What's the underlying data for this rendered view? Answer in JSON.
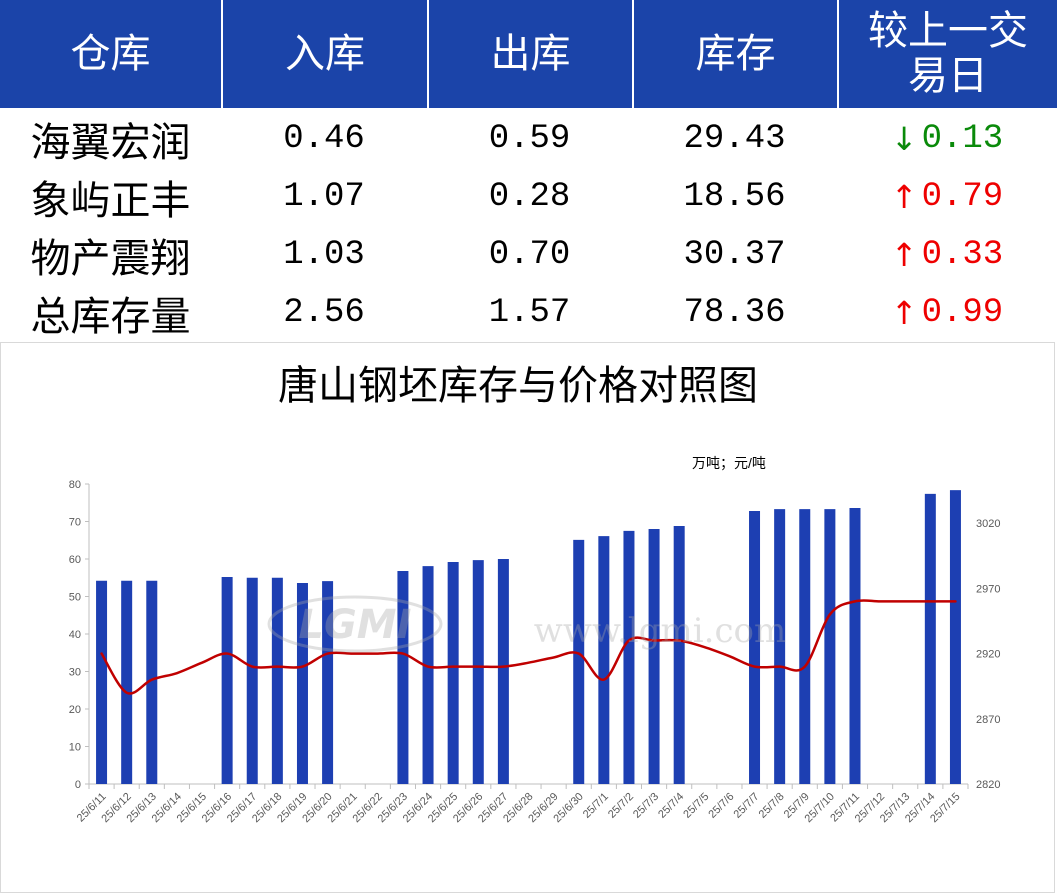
{
  "colors": {
    "header_background": "#1b44a9",
    "header_text": "#ffffff",
    "bar": "#1d3fb2",
    "line": "#c00000",
    "axis_text": "#595959",
    "watermark": "#a8a8a8"
  },
  "table": {
    "headers": [
      "仓库",
      "入库",
      "出库",
      "库存",
      "较上一交易日"
    ],
    "rows": [
      {
        "name": "海翼宏润",
        "in": "0.46",
        "out": "0.59",
        "stock": "29.43",
        "change": {
          "arrow": "↓",
          "value": "0.13",
          "color": "#0a8a0a"
        }
      },
      {
        "name": "象屿正丰",
        "in": "1.07",
        "out": "0.28",
        "stock": "18.56",
        "change": {
          "arrow": "↑",
          "value": "0.79",
          "color": "#ee0000"
        }
      },
      {
        "name": "物产震翔",
        "in": "1.03",
        "out": "0.70",
        "stock": "30.37",
        "change": {
          "arrow": "↑",
          "value": "0.33",
          "color": "#ee0000"
        }
      },
      {
        "name": "总库存量",
        "in": "2.56",
        "out": "1.57",
        "stock": "78.36",
        "change": {
          "arrow": "↑",
          "value": "0.99",
          "color": "#ee0000"
        }
      }
    ]
  },
  "watermark": {
    "logo": "LGMI",
    "url": "www.lgmi.com"
  },
  "chart_data": {
    "type": "bar",
    "title": "唐山钢坯库存与价格对照图",
    "unit_label": "万吨；元/吨",
    "categories": [
      "25/6/11",
      "25/6/12",
      "25/6/13",
      "25/6/14",
      "25/6/15",
      "25/6/16",
      "25/6/17",
      "25/6/18",
      "25/6/19",
      "25/6/20",
      "25/6/21",
      "25/6/22",
      "25/6/23",
      "25/6/24",
      "25/6/25",
      "25/6/26",
      "25/6/27",
      "25/6/28",
      "25/6/29",
      "25/6/30",
      "25/7/1",
      "25/7/2",
      "25/7/3",
      "25/7/4",
      "25/7/5",
      "25/7/6",
      "25/7/7",
      "25/7/8",
      "25/7/9",
      "25/7/10",
      "25/7/11",
      "25/7/12",
      "25/7/13",
      "25/7/14",
      "25/7/15"
    ],
    "series": [
      {
        "type": "bar",
        "axis": "left",
        "values": [
          54.2,
          54.2,
          54.2,
          null,
          null,
          55.2,
          55.0,
          55.0,
          53.6,
          54.1,
          null,
          null,
          56.8,
          58.1,
          59.2,
          59.7,
          60.0,
          null,
          null,
          65.1,
          66.1,
          67.5,
          68.0,
          68.8,
          null,
          null,
          72.8,
          73.3,
          73.3,
          73.3,
          73.6,
          null,
          null,
          77.37,
          78.36
        ]
      },
      {
        "type": "line",
        "axis": "right",
        "smooth": true,
        "values": [
          2920,
          2890,
          2900,
          2905,
          2913,
          2920,
          2910,
          2910,
          2910,
          2920,
          2920,
          2920,
          2920,
          2910,
          2910,
          2910,
          2910,
          2913,
          2917,
          2920,
          2900,
          2930,
          2930,
          2930,
          2925,
          2918,
          2910,
          2910,
          2910,
          2950,
          2960,
          2960,
          2960,
          2960,
          2960
        ]
      }
    ],
    "ylim": [
      0,
      80
    ],
    "yticks": [
      0,
      10,
      20,
      30,
      40,
      50,
      60,
      70,
      80
    ],
    "y2lim": [
      2820,
      3050
    ],
    "y2ticks": [
      2820,
      2870,
      2920,
      2970,
      3020
    ],
    "grid": false,
    "legend": "none"
  }
}
